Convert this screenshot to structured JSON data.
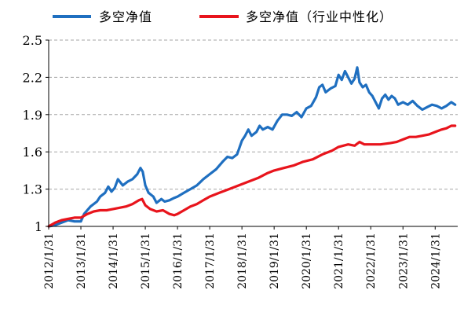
{
  "chart_data": {
    "type": "line",
    "title": "",
    "xlabel": "",
    "ylabel": "",
    "ylim": [
      1,
      2.5
    ],
    "yticks": [
      "1",
      "1.3",
      "1.6",
      "1.9",
      "2.2",
      "2.5"
    ],
    "xticks": [
      "2012/1/31",
      "2013/1/31",
      "2014/1/31",
      "2015/1/31",
      "2016/1/31",
      "2017/1/31",
      "2018/1/31",
      "2019/1/31",
      "2020/1/31",
      "2021/1/31",
      "2022/1/31",
      "2023/1/31",
      "2024/1/31"
    ],
    "x_range": [
      2012.0,
      2024.7
    ],
    "grid": "horizontal-dashed",
    "legend_placement": "top",
    "series": [
      {
        "name": "多空净值",
        "color": "#1f6fc0",
        "points": [
          [
            2012.0,
            1.0
          ],
          [
            2012.2,
            1.01
          ],
          [
            2012.4,
            1.03
          ],
          [
            2012.6,
            1.05
          ],
          [
            2012.8,
            1.04
          ],
          [
            2013.0,
            1.04
          ],
          [
            2013.1,
            1.1
          ],
          [
            2013.3,
            1.16
          ],
          [
            2013.5,
            1.2
          ],
          [
            2013.6,
            1.24
          ],
          [
            2013.75,
            1.27
          ],
          [
            2013.85,
            1.32
          ],
          [
            2013.95,
            1.28
          ],
          [
            2014.05,
            1.31
          ],
          [
            2014.15,
            1.38
          ],
          [
            2014.3,
            1.33
          ],
          [
            2014.45,
            1.36
          ],
          [
            2014.6,
            1.38
          ],
          [
            2014.75,
            1.42
          ],
          [
            2014.85,
            1.47
          ],
          [
            2014.92,
            1.44
          ],
          [
            2015.0,
            1.33
          ],
          [
            2015.1,
            1.27
          ],
          [
            2015.25,
            1.24
          ],
          [
            2015.35,
            1.19
          ],
          [
            2015.5,
            1.22
          ],
          [
            2015.6,
            1.2
          ],
          [
            2015.75,
            1.21
          ],
          [
            2015.9,
            1.23
          ],
          [
            2016.0,
            1.24
          ],
          [
            2016.2,
            1.27
          ],
          [
            2016.4,
            1.3
          ],
          [
            2016.6,
            1.33
          ],
          [
            2016.8,
            1.38
          ],
          [
            2017.0,
            1.42
          ],
          [
            2017.2,
            1.46
          ],
          [
            2017.4,
            1.52
          ],
          [
            2017.55,
            1.56
          ],
          [
            2017.7,
            1.55
          ],
          [
            2017.85,
            1.58
          ],
          [
            2018.0,
            1.69
          ],
          [
            2018.1,
            1.73
          ],
          [
            2018.2,
            1.78
          ],
          [
            2018.3,
            1.73
          ],
          [
            2018.45,
            1.76
          ],
          [
            2018.55,
            1.81
          ],
          [
            2018.65,
            1.78
          ],
          [
            2018.8,
            1.8
          ],
          [
            2018.95,
            1.78
          ],
          [
            2019.1,
            1.85
          ],
          [
            2019.25,
            1.9
          ],
          [
            2019.4,
            1.9
          ],
          [
            2019.55,
            1.89
          ],
          [
            2019.7,
            1.92
          ],
          [
            2019.85,
            1.88
          ],
          [
            2020.0,
            1.95
          ],
          [
            2020.15,
            1.97
          ],
          [
            2020.3,
            2.04
          ],
          [
            2020.4,
            2.12
          ],
          [
            2020.5,
            2.14
          ],
          [
            2020.6,
            2.08
          ],
          [
            2020.75,
            2.11
          ],
          [
            2020.9,
            2.13
          ],
          [
            2021.0,
            2.22
          ],
          [
            2021.1,
            2.18
          ],
          [
            2021.2,
            2.25
          ],
          [
            2021.3,
            2.2
          ],
          [
            2021.4,
            2.15
          ],
          [
            2021.5,
            2.19
          ],
          [
            2021.58,
            2.28
          ],
          [
            2021.65,
            2.16
          ],
          [
            2021.75,
            2.12
          ],
          [
            2021.85,
            2.14
          ],
          [
            2021.95,
            2.08
          ],
          [
            2022.05,
            2.05
          ],
          [
            2022.15,
            2.0
          ],
          [
            2022.25,
            1.95
          ],
          [
            2022.35,
            2.03
          ],
          [
            2022.45,
            2.06
          ],
          [
            2022.55,
            2.02
          ],
          [
            2022.65,
            2.05
          ],
          [
            2022.75,
            2.03
          ],
          [
            2022.85,
            1.98
          ],
          [
            2023.0,
            2.0
          ],
          [
            2023.15,
            1.98
          ],
          [
            2023.3,
            2.01
          ],
          [
            2023.45,
            1.97
          ],
          [
            2023.6,
            1.94
          ],
          [
            2023.75,
            1.96
          ],
          [
            2023.9,
            1.98
          ],
          [
            2024.05,
            1.97
          ],
          [
            2024.2,
            1.95
          ],
          [
            2024.35,
            1.97
          ],
          [
            2024.5,
            2.0
          ],
          [
            2024.62,
            1.98
          ]
        ]
      },
      {
        "name": "多空净值（行业中性化）",
        "color": "#e8141c",
        "points": [
          [
            2012.0,
            1.0
          ],
          [
            2012.2,
            1.03
          ],
          [
            2012.4,
            1.05
          ],
          [
            2012.6,
            1.06
          ],
          [
            2012.8,
            1.07
          ],
          [
            2013.0,
            1.07
          ],
          [
            2013.2,
            1.1
          ],
          [
            2013.4,
            1.12
          ],
          [
            2013.6,
            1.13
          ],
          [
            2013.8,
            1.13
          ],
          [
            2014.0,
            1.14
          ],
          [
            2014.2,
            1.15
          ],
          [
            2014.4,
            1.16
          ],
          [
            2014.6,
            1.18
          ],
          [
            2014.8,
            1.21
          ],
          [
            2014.9,
            1.22
          ],
          [
            2015.0,
            1.17
          ],
          [
            2015.15,
            1.14
          ],
          [
            2015.35,
            1.12
          ],
          [
            2015.55,
            1.13
          ],
          [
            2015.75,
            1.1
          ],
          [
            2015.9,
            1.09
          ],
          [
            2016.0,
            1.1
          ],
          [
            2016.2,
            1.13
          ],
          [
            2016.4,
            1.16
          ],
          [
            2016.6,
            1.18
          ],
          [
            2016.8,
            1.21
          ],
          [
            2017.0,
            1.24
          ],
          [
            2017.3,
            1.27
          ],
          [
            2017.6,
            1.3
          ],
          [
            2017.9,
            1.33
          ],
          [
            2018.2,
            1.36
          ],
          [
            2018.5,
            1.39
          ],
          [
            2018.8,
            1.43
          ],
          [
            2019.0,
            1.45
          ],
          [
            2019.3,
            1.47
          ],
          [
            2019.6,
            1.49
          ],
          [
            2019.9,
            1.52
          ],
          [
            2020.2,
            1.54
          ],
          [
            2020.5,
            1.58
          ],
          [
            2020.8,
            1.61
          ],
          [
            2021.0,
            1.64
          ],
          [
            2021.3,
            1.66
          ],
          [
            2021.5,
            1.65
          ],
          [
            2021.65,
            1.68
          ],
          [
            2021.8,
            1.66
          ],
          [
            2022.0,
            1.66
          ],
          [
            2022.3,
            1.66
          ],
          [
            2022.6,
            1.67
          ],
          [
            2022.8,
            1.68
          ],
          [
            2023.0,
            1.7
          ],
          [
            2023.2,
            1.72
          ],
          [
            2023.4,
            1.72
          ],
          [
            2023.6,
            1.73
          ],
          [
            2023.8,
            1.74
          ],
          [
            2024.0,
            1.76
          ],
          [
            2024.2,
            1.78
          ],
          [
            2024.35,
            1.79
          ],
          [
            2024.5,
            1.81
          ],
          [
            2024.62,
            1.81
          ]
        ]
      }
    ]
  }
}
